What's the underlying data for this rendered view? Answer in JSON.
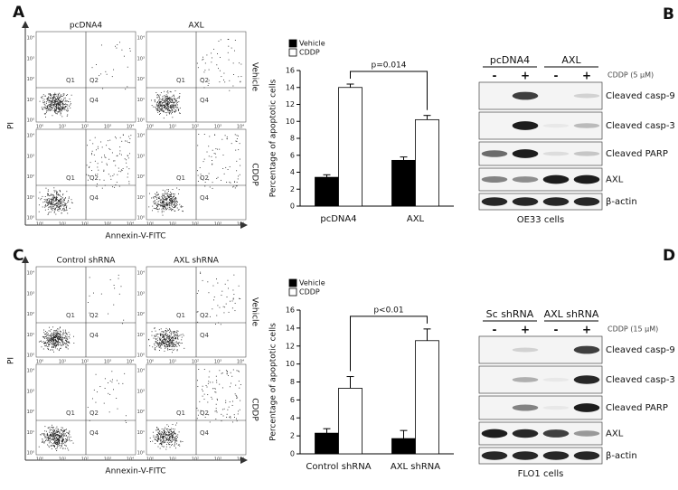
{
  "panel_labels": [
    "A",
    "B",
    "C",
    "D"
  ],
  "flow_ticks": [
    "10⁰",
    "10¹",
    "10²",
    "10³",
    "10⁴"
  ],
  "flow_a": {
    "columns": [
      "pcDNA4",
      "AXL"
    ],
    "rows": [
      "Vehicle",
      "CDDP"
    ],
    "y_label": "PI",
    "x_label": "Annexin-V-FITC",
    "quadrants": [
      "Q1",
      "Q2",
      "Q4"
    ]
  },
  "flow_c": {
    "columns": [
      "Control shRNA",
      "AXL shRNA"
    ],
    "rows": [
      "Vehicle",
      "CDDP"
    ],
    "y_label": "PI",
    "x_label": "Annexin-V-FITC",
    "quadrants": [
      "Q1",
      "Q2",
      "Q4"
    ]
  },
  "blot_b": {
    "groups": [
      "pcDNA4",
      "AXL"
    ],
    "treatment": "CDDP (5 µM)",
    "signs": [
      "-",
      "+",
      "-",
      "+"
    ],
    "rows": [
      "Cleaved casp-9",
      "Cleaved casp-3",
      "Cleaved PARP",
      "AXL",
      "β-actin"
    ],
    "cells": "OE33 cells"
  },
  "blot_d": {
    "groups": [
      "Sc shRNA",
      "AXL shRNA"
    ],
    "treatment": "CDDP (15 µM)",
    "signs": [
      "-",
      "+",
      "-",
      "+"
    ],
    "rows": [
      "Cleaved casp-9",
      "Cleaved casp-3",
      "Cleaved PARP",
      "AXL",
      "β-actin"
    ],
    "cells": "FLO1 cells"
  },
  "chart_data": [
    {
      "type": "bar",
      "y_label": "Percentage of apoptotic cells",
      "categories": [
        "pcDNA4",
        "AXL"
      ],
      "series": [
        {
          "name": "Vehicle",
          "color": "#000000",
          "values": [
            3.4,
            5.4
          ],
          "errors": [
            0.3,
            0.4
          ]
        },
        {
          "name": "CDDP",
          "color": "#ffffff",
          "values": [
            14.0,
            10.2
          ],
          "errors": [
            0.4,
            0.5
          ]
        }
      ],
      "ylim": [
        0,
        16
      ],
      "yticks": [
        0,
        2,
        4,
        6,
        8,
        10,
        12,
        14,
        16
      ],
      "annotation": "p=0.014",
      "legend": "top-left"
    },
    {
      "type": "bar",
      "y_label": "Percentage of apoptotic cells",
      "categories": [
        "Control shRNA",
        "AXL shRNA"
      ],
      "series": [
        {
          "name": "Vehicle",
          "color": "#000000",
          "values": [
            2.3,
            1.7
          ],
          "errors": [
            0.5,
            0.9
          ]
        },
        {
          "name": "CDDP",
          "color": "#ffffff",
          "values": [
            7.3,
            12.6
          ],
          "errors": [
            1.3,
            1.3
          ]
        }
      ],
      "ylim": [
        0,
        16
      ],
      "yticks": [
        0,
        2,
        4,
        6,
        8,
        10,
        12,
        14,
        16
      ],
      "annotation": "p<0.01",
      "legend": "top-left"
    }
  ]
}
